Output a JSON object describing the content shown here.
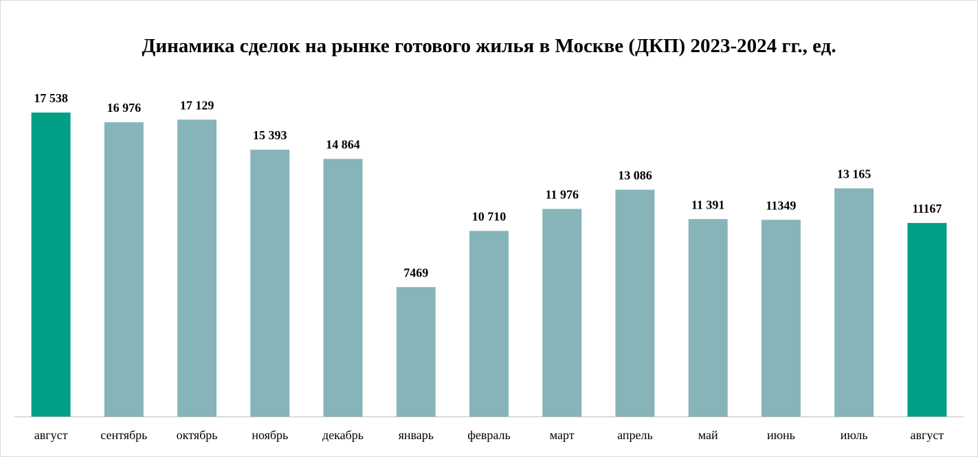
{
  "chart_data": {
    "type": "bar",
    "title": "Динамика сделок на рынке готового жилья в Москве (ДКП) 2023-2024 гг., ед.",
    "categories": [
      "август",
      "сентябрь",
      "октябрь",
      "ноябрь",
      "декабрь",
      "январь",
      "февраль",
      "март",
      "апрель",
      "май",
      "июнь",
      "июль",
      "август"
    ],
    "values": [
      17538,
      16976,
      17129,
      15393,
      14864,
      7469,
      10710,
      11976,
      13086,
      11391,
      11349,
      13165,
      11167
    ],
    "value_labels": [
      "17 538",
      "16 976",
      "17 129",
      "15 393",
      "14 864",
      "7469",
      "10 710",
      "11 976",
      "13 086",
      "11 391",
      "11349",
      "13 165",
      "11167"
    ],
    "bar_colors": [
      "#00a087",
      "#86b4b9",
      "#86b4b9",
      "#86b4b9",
      "#86b4b9",
      "#86b4b9",
      "#86b4b9",
      "#86b4b9",
      "#86b4b9",
      "#86b4b9",
      "#86b4b9",
      "#86b4b9",
      "#00a087"
    ],
    "highlight_color": "#00a087",
    "base_color": "#86b4b9",
    "xlabel": "",
    "ylabel": "",
    "ylim": [
      0,
      17538
    ],
    "grid": false,
    "legend": "none"
  }
}
